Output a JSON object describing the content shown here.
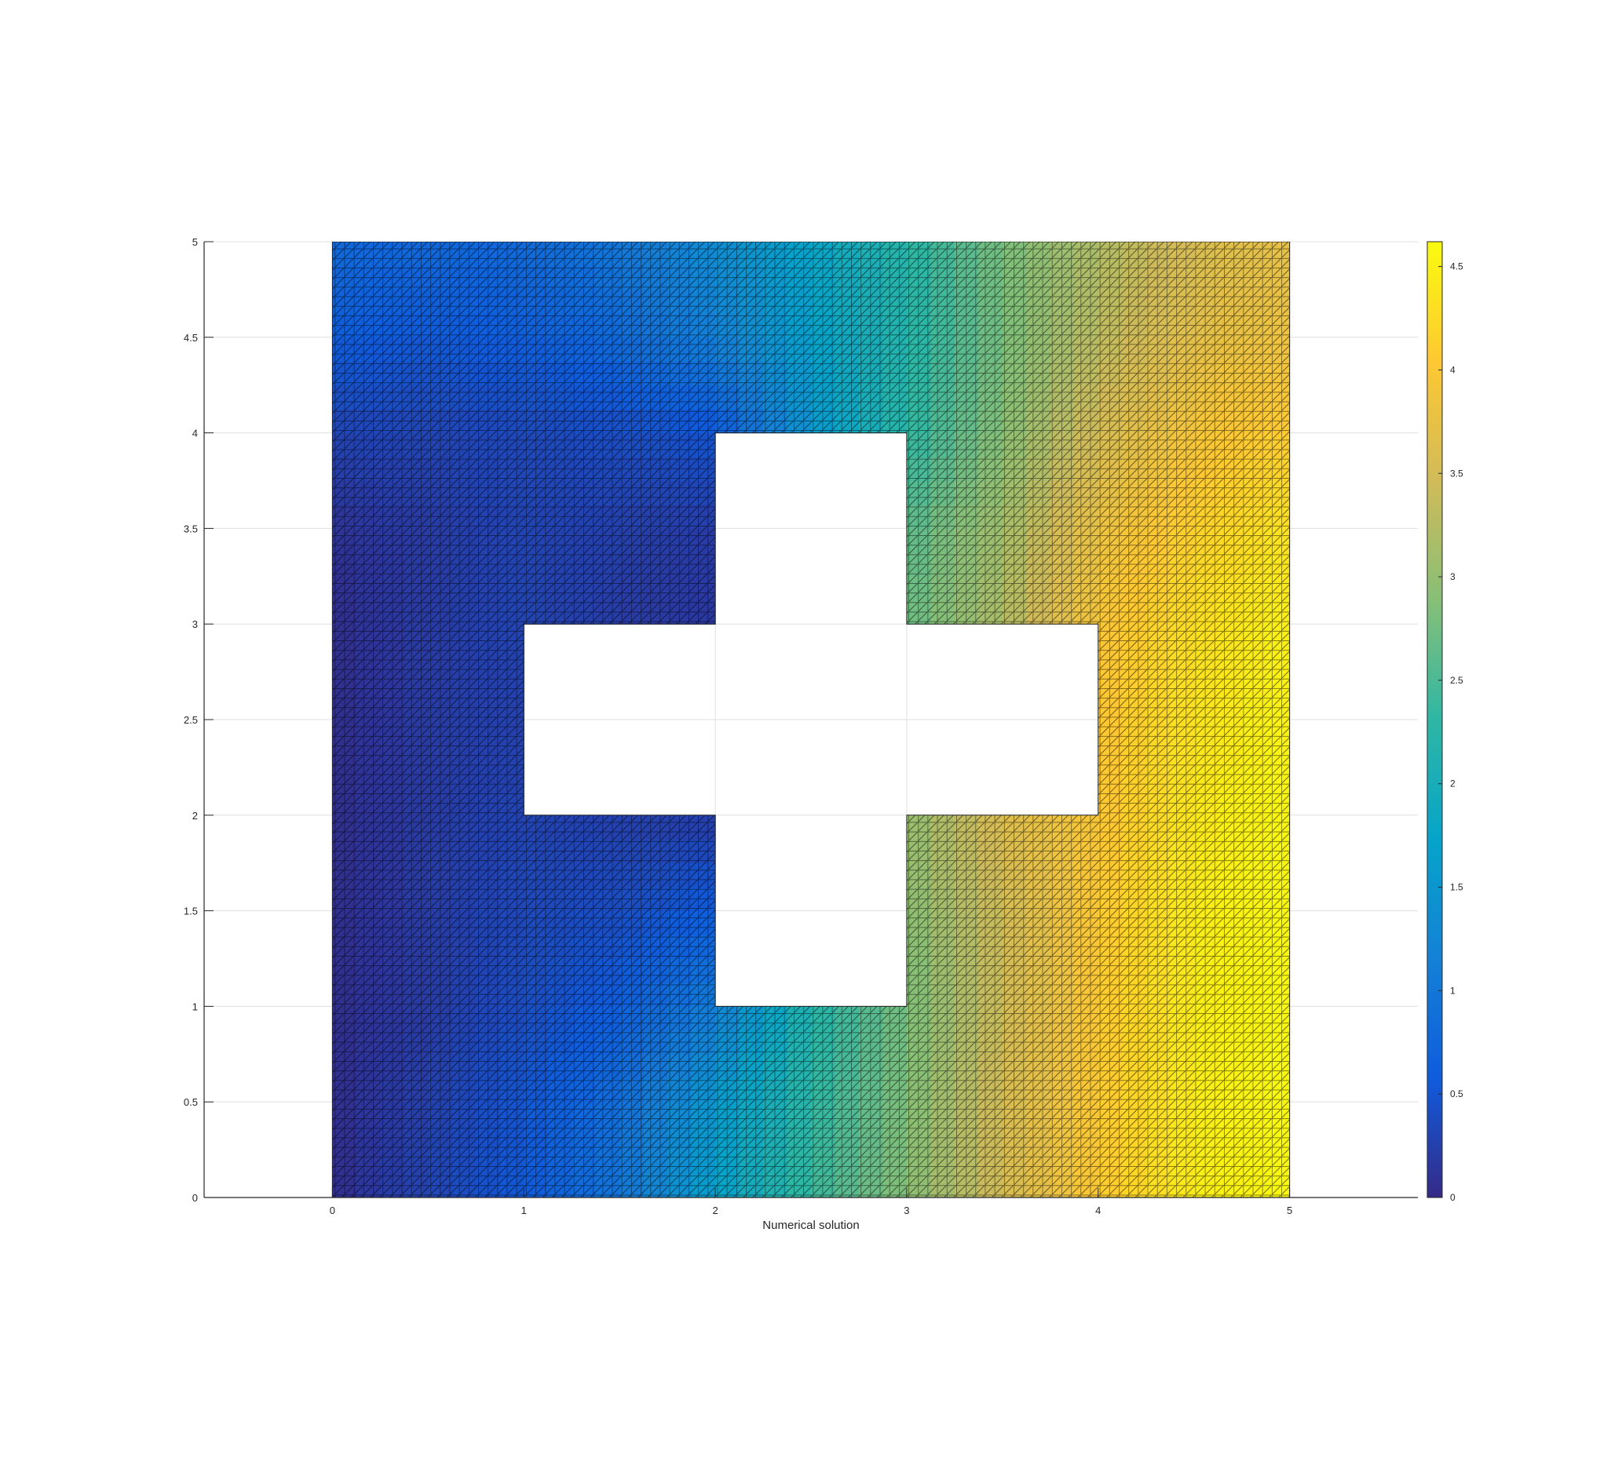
{
  "chart_data": {
    "type": "heatmap",
    "subtype": "triangular-mesh surface (2D view)",
    "xlabel": "Numerical solution",
    "ylabel": "",
    "title": "",
    "xlim": [
      -0.67,
      5.67
    ],
    "ylim": [
      0,
      5
    ],
    "xticks": [
      0,
      1,
      2,
      3,
      4,
      5
    ],
    "xtick_labels": [
      "0",
      "1",
      "2",
      "3",
      "4",
      "5"
    ],
    "yticks": [
      0,
      0.5,
      1,
      1.5,
      2,
      2.5,
      3,
      3.5,
      4,
      4.5,
      5
    ],
    "ytick_labels": [
      "0",
      "0.5",
      "1",
      "1.5",
      "2",
      "2.5",
      "3",
      "3.5",
      "4",
      "4.5",
      "5"
    ],
    "grid": true,
    "domain": {
      "outer": [
        0,
        5,
        0,
        5
      ],
      "hole_cross": [
        {
          "x": [
            2,
            3
          ],
          "y": [
            1,
            4
          ]
        },
        {
          "x": [
            1,
            4
          ],
          "y": [
            2,
            3
          ]
        }
      ]
    },
    "mesh_cells_per_unit": 20,
    "color_grid": {
      "x": [
        0,
        0.5,
        1,
        1.5,
        2,
        2.5,
        3,
        3.5,
        4,
        4.5,
        5
      ],
      "y": [
        0,
        0.5,
        1,
        1.5,
        2,
        2.5,
        3,
        3.5,
        4,
        4.5,
        5
      ],
      "values": [
        [
          0.05,
          0.3,
          0.55,
          1.0,
          1.7,
          2.4,
          2.9,
          3.5,
          4.05,
          4.45,
          4.6
        ],
        [
          0.05,
          0.25,
          0.5,
          0.85,
          1.55,
          2.3,
          2.85,
          3.5,
          4.05,
          4.45,
          4.6
        ],
        [
          0.05,
          0.2,
          0.4,
          0.6,
          1.1,
          2.2,
          2.8,
          3.45,
          4.05,
          4.45,
          4.6
        ],
        [
          0.05,
          0.2,
          0.35,
          0.4,
          0.6,
          null,
          2.9,
          3.45,
          4.05,
          4.45,
          4.6
        ],
        [
          0.05,
          0.2,
          0.3,
          0.25,
          0.2,
          null,
          3.0,
          3.6,
          4.0,
          4.4,
          4.6
        ],
        [
          0.05,
          0.2,
          null,
          null,
          null,
          null,
          null,
          null,
          4.0,
          4.35,
          4.55
        ],
        [
          0.05,
          0.2,
          0.3,
          0.2,
          0.15,
          null,
          2.7,
          3.2,
          3.95,
          4.3,
          4.5
        ],
        [
          0.1,
          0.2,
          0.3,
          0.25,
          0.2,
          null,
          2.6,
          3.1,
          3.8,
          4.15,
          4.35
        ],
        [
          0.3,
          0.3,
          0.35,
          0.4,
          0.5,
          null,
          2.3,
          2.9,
          3.5,
          3.95,
          4.1
        ],
        [
          0.6,
          0.55,
          0.6,
          0.8,
          1.15,
          1.7,
          2.2,
          2.8,
          3.3,
          3.7,
          3.85
        ],
        [
          0.8,
          0.75,
          0.8,
          1.0,
          1.35,
          1.75,
          2.25,
          2.8,
          3.2,
          3.55,
          3.75
        ]
      ]
    },
    "colorbar": {
      "colormap": "parula",
      "clim": [
        0,
        4.62
      ],
      "ticks": [
        0,
        0.5,
        1,
        1.5,
        2,
        2.5,
        3,
        3.5,
        4,
        4.5
      ],
      "tick_labels": [
        "0",
        "0.5",
        "1",
        "1.5",
        "2",
        "2.5",
        "3",
        "3.5",
        "4",
        "4.5"
      ],
      "colors": [
        "#352a87",
        "#0f5cdd",
        "#1481d6",
        "#06a4ca",
        "#2eb7a4",
        "#87bf77",
        "#d1bb59",
        "#fec832",
        "#f9fb0e"
      ]
    }
  }
}
